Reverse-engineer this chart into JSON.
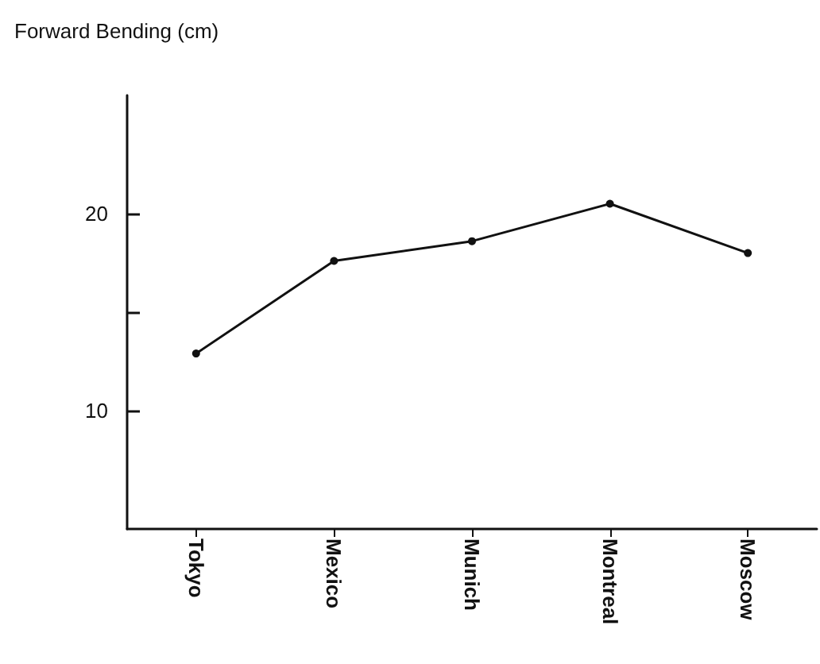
{
  "chart_data": {
    "type": "line",
    "ylabel": "Forward Bending (cm)",
    "categories": [
      "Tokyo",
      "Mexico",
      "Munich",
      "Montreal",
      "Moscow"
    ],
    "series": [
      {
        "color": "#111111",
        "values": [
          12.9,
          17.6,
          18.6,
          20.5,
          18.0
        ]
      }
    ],
    "ylim": [
      4,
      26
    ],
    "yticks": [
      10,
      {
        "value": 15,
        "label": null
      },
      20
    ],
    "grid": false,
    "marker": "circle",
    "line_style": "solid"
  }
}
